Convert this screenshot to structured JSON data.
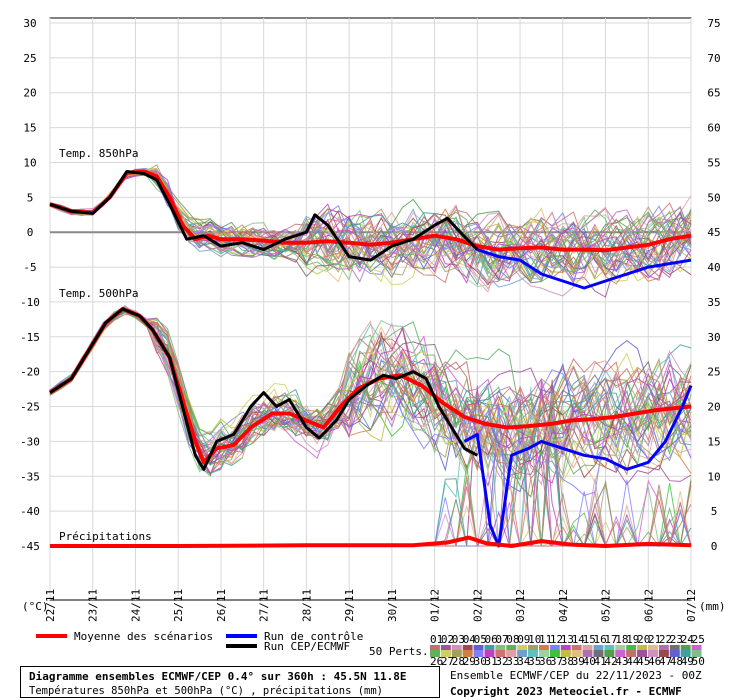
{
  "chart_data": {
    "type": "line",
    "title": "Diagramme ensembles ECMWF/CEP 0.4° sur 360h : 45.5N 11.8E",
    "subtitle": "Températures 850hPa et 500hPa (°C) , précipitations (mm)",
    "left_unit": "(°C)",
    "right_unit": "(mm)",
    "left_axis": {
      "ylim": [
        -45,
        30
      ],
      "ticks": [
        30,
        25,
        20,
        15,
        10,
        5,
        0,
        -5,
        -10,
        -15,
        -20,
        -25,
        -30,
        -35,
        -40,
        -45
      ]
    },
    "right_axis": {
      "ticks": [
        75,
        70,
        65,
        60,
        55,
        50,
        45,
        40,
        35,
        30,
        25,
        20,
        15,
        10,
        5,
        0
      ]
    },
    "x_ticks": [
      "22/11",
      "23/11",
      "24/11",
      "25/11",
      "26/11",
      "27/11",
      "28/11",
      "29/11",
      "30/11",
      "01/12",
      "02/12",
      "03/12",
      "04/12",
      "05/12",
      "06/12",
      "07/12"
    ],
    "panel_labels": [
      "Temp. 850hPa",
      "Temp. 500hPa",
      "Précipitations"
    ],
    "series": [
      {
        "name": "Moyenne des scénarios",
        "panel": "850hPa",
        "color": "#ff0000",
        "points": [
          [
            0,
            4
          ],
          [
            0.5,
            3
          ],
          [
            1,
            2.8
          ],
          [
            1.4,
            5
          ],
          [
            1.8,
            8.5
          ],
          [
            2.2,
            8.7
          ],
          [
            2.5,
            8
          ],
          [
            2.8,
            5
          ],
          [
            3.1,
            1
          ],
          [
            3.4,
            -1
          ],
          [
            3.7,
            -0.5
          ],
          [
            4,
            -1
          ],
          [
            4.5,
            -1
          ],
          [
            5,
            -1.2
          ],
          [
            5.5,
            -1.5
          ],
          [
            6,
            -1.5
          ],
          [
            6.5,
            -1.3
          ],
          [
            7,
            -1.5
          ],
          [
            7.5,
            -1.8
          ],
          [
            8,
            -1.5
          ],
          [
            8.5,
            -1
          ],
          [
            9,
            -0.5
          ],
          [
            9.5,
            -1
          ],
          [
            10,
            -2
          ],
          [
            10.5,
            -2.5
          ],
          [
            11,
            -2.3
          ],
          [
            11.5,
            -2.2
          ],
          [
            12,
            -2.5
          ],
          [
            12.5,
            -2.5
          ],
          [
            13,
            -2.6
          ],
          [
            13.5,
            -2.2
          ],
          [
            14,
            -1.8
          ],
          [
            14.5,
            -1
          ],
          [
            15,
            -0.5
          ]
        ]
      },
      {
        "name": "Run CEP/ECMWF",
        "panel": "850hPa",
        "color": "#000000",
        "points": [
          [
            0,
            4
          ],
          [
            0.5,
            3
          ],
          [
            1,
            2.7
          ],
          [
            1.4,
            5
          ],
          [
            1.8,
            8.7
          ],
          [
            2.2,
            8.4
          ],
          [
            2.5,
            7.5
          ],
          [
            2.8,
            4
          ],
          [
            3.2,
            -1
          ],
          [
            3.6,
            -0.5
          ],
          [
            4,
            -2
          ],
          [
            4.5,
            -1.5
          ],
          [
            5,
            -2.5
          ],
          [
            5.5,
            -1
          ],
          [
            6,
            0
          ],
          [
            6.2,
            2.5
          ],
          [
            6.5,
            1
          ],
          [
            7,
            -3.5
          ],
          [
            7.5,
            -4
          ],
          [
            8,
            -2
          ],
          [
            8.5,
            -1
          ],
          [
            9,
            1
          ],
          [
            9.3,
            2
          ],
          [
            9.6,
            0
          ],
          [
            10,
            -2.5
          ]
        ]
      },
      {
        "name": "Run de contrôle",
        "panel": "850hPa",
        "color": "#0000ff",
        "points": [
          [
            10,
            -2.5
          ],
          [
            10.5,
            -3.5
          ],
          [
            11,
            -4
          ],
          [
            11.5,
            -6
          ],
          [
            12,
            -7
          ],
          [
            12.5,
            -8
          ],
          [
            13,
            -7
          ],
          [
            13.5,
            -6
          ],
          [
            14,
            -5
          ],
          [
            14.5,
            -4.5
          ],
          [
            15,
            -4
          ]
        ]
      },
      {
        "name": "Moyenne des scénarios",
        "panel": "500hPa",
        "color": "#ff0000",
        "points": [
          [
            0,
            -23
          ],
          [
            0.5,
            -21
          ],
          [
            0.8,
            -18
          ],
          [
            1.3,
            -13
          ],
          [
            1.7,
            -11
          ],
          [
            2.1,
            -12
          ],
          [
            2.4,
            -14
          ],
          [
            2.8,
            -18
          ],
          [
            3.1,
            -24
          ],
          [
            3.4,
            -30
          ],
          [
            3.6,
            -33
          ],
          [
            3.9,
            -31
          ],
          [
            4.3,
            -30.5
          ],
          [
            4.7,
            -28
          ],
          [
            5.2,
            -26
          ],
          [
            5.6,
            -26
          ],
          [
            6,
            -27
          ],
          [
            6.4,
            -28
          ],
          [
            6.8,
            -25
          ],
          [
            7.2,
            -22.5
          ],
          [
            7.7,
            -21
          ],
          [
            8.2,
            -20.5
          ],
          [
            8.7,
            -22
          ],
          [
            9.2,
            -24.5
          ],
          [
            9.7,
            -26.5
          ],
          [
            10.2,
            -27.5
          ],
          [
            10.7,
            -28
          ],
          [
            11.2,
            -27.8
          ],
          [
            11.7,
            -27.5
          ],
          [
            12.2,
            -27
          ],
          [
            12.7,
            -26.8
          ],
          [
            13.2,
            -26.5
          ],
          [
            13.7,
            -26
          ],
          [
            14.2,
            -25.5
          ],
          [
            15,
            -25
          ]
        ]
      },
      {
        "name": "Run CEP/ECMWF",
        "panel": "500hPa",
        "color": "#000000",
        "points": [
          [
            0,
            -23
          ],
          [
            0.5,
            -21
          ],
          [
            0.8,
            -18
          ],
          [
            1.3,
            -13
          ],
          [
            1.7,
            -11
          ],
          [
            2.1,
            -12
          ],
          [
            2.4,
            -14
          ],
          [
            2.8,
            -18
          ],
          [
            3.1,
            -25
          ],
          [
            3.4,
            -32
          ],
          [
            3.6,
            -34
          ],
          [
            3.9,
            -30
          ],
          [
            4.3,
            -29
          ],
          [
            4.7,
            -25
          ],
          [
            5,
            -23
          ],
          [
            5.3,
            -25
          ],
          [
            5.6,
            -24
          ],
          [
            6,
            -28
          ],
          [
            6.3,
            -29.5
          ],
          [
            6.7,
            -27
          ],
          [
            7,
            -24
          ],
          [
            7.4,
            -22
          ],
          [
            7.8,
            -20.5
          ],
          [
            8.1,
            -21
          ],
          [
            8.5,
            -20
          ],
          [
            8.8,
            -21
          ],
          [
            9.1,
            -25
          ],
          [
            9.4,
            -28
          ],
          [
            9.7,
            -31
          ],
          [
            10,
            -32
          ]
        ]
      },
      {
        "name": "Run de contrôle",
        "panel": "500hPa",
        "color": "#0000ff",
        "points": [
          [
            9.7,
            -30
          ],
          [
            10,
            -29
          ],
          [
            10.3,
            -42
          ],
          [
            10.5,
            -45
          ],
          [
            10.8,
            -32
          ],
          [
            11.2,
            -31
          ],
          [
            11.5,
            -30
          ],
          [
            12,
            -31
          ],
          [
            12.5,
            -32
          ],
          [
            13,
            -32.5
          ],
          [
            13.5,
            -34
          ],
          [
            14,
            -33
          ],
          [
            14.4,
            -30
          ],
          [
            14.8,
            -25
          ],
          [
            15,
            -22
          ]
        ]
      },
      {
        "name": "Moyenne des scénarios",
        "panel": "precip",
        "color": "#ff0000",
        "points": [
          [
            0,
            -45
          ],
          [
            3,
            -45
          ],
          [
            6,
            -44.9
          ],
          [
            8.5,
            -44.9
          ],
          [
            9.3,
            -44.5
          ],
          [
            9.8,
            -43.8
          ],
          [
            10.2,
            -44.6
          ],
          [
            10.8,
            -45
          ],
          [
            11.5,
            -44.3
          ],
          [
            12.2,
            -44.8
          ],
          [
            13,
            -45
          ],
          [
            14,
            -44.7
          ],
          [
            15,
            -44.9
          ]
        ]
      }
    ]
  },
  "legend": {
    "mean_label": "Moyenne des scénarios",
    "control_label": "Run de contrôle",
    "oper_label": "Run CEP/ECMWF",
    "perts_label": "50 Perts.",
    "member_numbers_row1": [
      "01",
      "02",
      "03",
      "04",
      "05",
      "06",
      "07",
      "08",
      "09",
      "10",
      "11",
      "12",
      "13",
      "14",
      "15",
      "16",
      "17",
      "18",
      "19",
      "20",
      "21",
      "22",
      "23",
      "24",
      "25"
    ],
    "member_numbers_row2": [
      "26",
      "27",
      "28",
      "29",
      "30",
      "31",
      "32",
      "33",
      "34",
      "35",
      "36",
      "37",
      "38",
      "39",
      "40",
      "41",
      "42",
      "43",
      "44",
      "45",
      "46",
      "47",
      "48",
      "49",
      "50"
    ],
    "member_colors": [
      "#c07070",
      "#a050a0",
      "#d090c0",
      "#9a4a4a",
      "#6060d0",
      "#40a0a0",
      "#80c080",
      "#60b060",
      "#d0d060",
      "#a0a060",
      "#d08040",
      "#8080ff",
      "#c040c0",
      "#d07070",
      "#e0a0a0",
      "#70a0d0",
      "#60c0c0",
      "#a0d0a0",
      "#40c040",
      "#c0c040",
      "#e0c080",
      "#b070b0",
      "#707070",
      "#50a050",
      "#d060d0"
    ]
  },
  "title_box": {
    "line1": "Diagramme ensembles ECMWF/CEP 0.4° sur 360h : 45.5N 11.8E",
    "line2": "Températures 850hPa et 500hPa (°C) , précipitations (mm)"
  },
  "run_info": "Ensemble ECMWF/CEP du 22/11/2023 - 00Z",
  "copyright": "Copyright 2023 Meteociel.fr - ECMWF"
}
